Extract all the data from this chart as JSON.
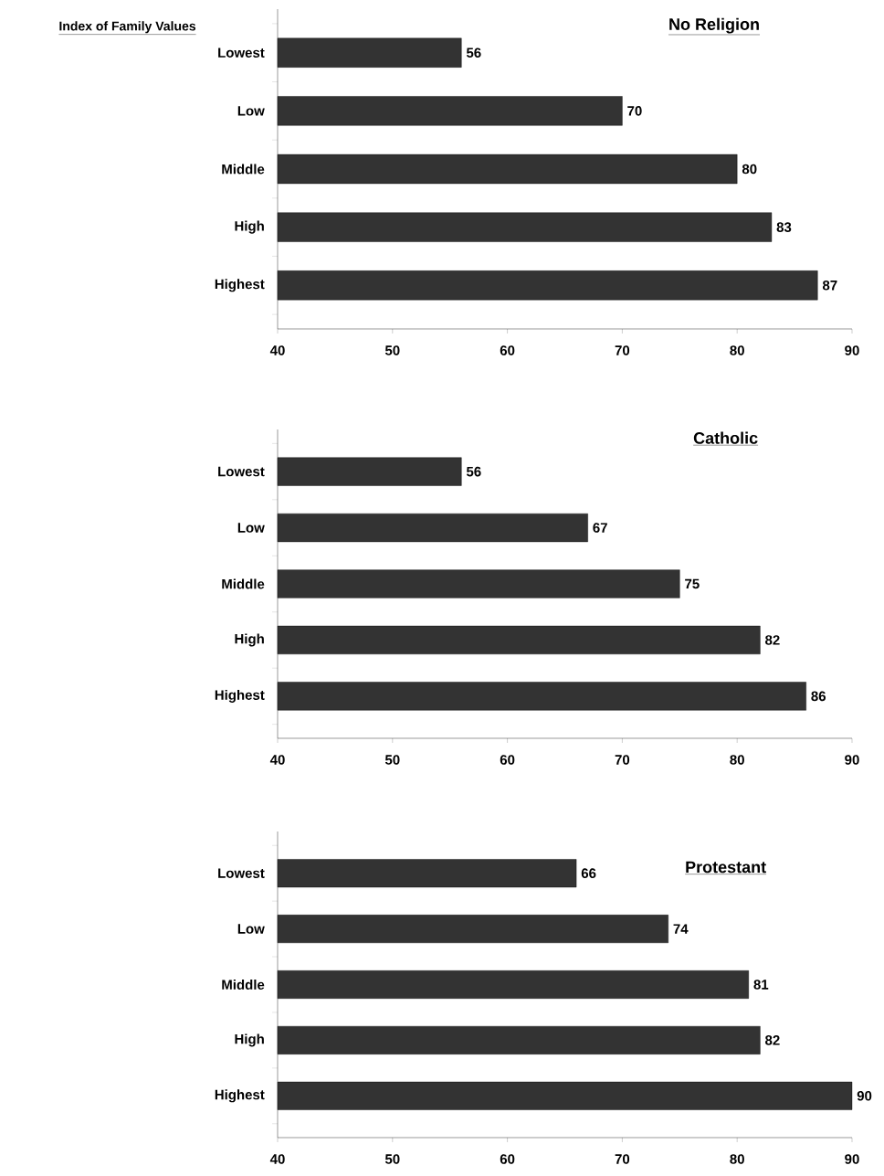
{
  "chart_data": [
    {
      "type": "bar",
      "orientation": "horizontal",
      "title": "No Religion",
      "ylabel": "Index of Family Values",
      "categories": [
        "Lowest",
        "Low",
        "Middle",
        "High",
        "Highest"
      ],
      "values": [
        56,
        70,
        80,
        83,
        87
      ],
      "color": "#333333",
      "xlim": [
        40,
        90
      ],
      "xticks": [
        40,
        50,
        60,
        70,
        80,
        90
      ],
      "data_labels": true
    },
    {
      "type": "bar",
      "orientation": "horizontal",
      "title": "Catholic",
      "categories": [
        "Lowest",
        "Low",
        "Middle",
        "High",
        "Highest"
      ],
      "values": [
        56,
        67,
        75,
        82,
        86
      ],
      "color": "#333333",
      "xlim": [
        40,
        90
      ],
      "xticks": [
        40,
        50,
        60,
        70,
        80,
        90
      ],
      "data_labels": true
    },
    {
      "type": "bar",
      "orientation": "horizontal",
      "title": "Protestant",
      "categories": [
        "Lowest",
        "Low",
        "Middle",
        "High",
        "Highest"
      ],
      "values": [
        66,
        74,
        81,
        82,
        90
      ],
      "color": "#333333",
      "xlim": [
        40,
        90
      ],
      "xticks": [
        40,
        50,
        60,
        70,
        80,
        90
      ],
      "data_labels": true
    }
  ]
}
